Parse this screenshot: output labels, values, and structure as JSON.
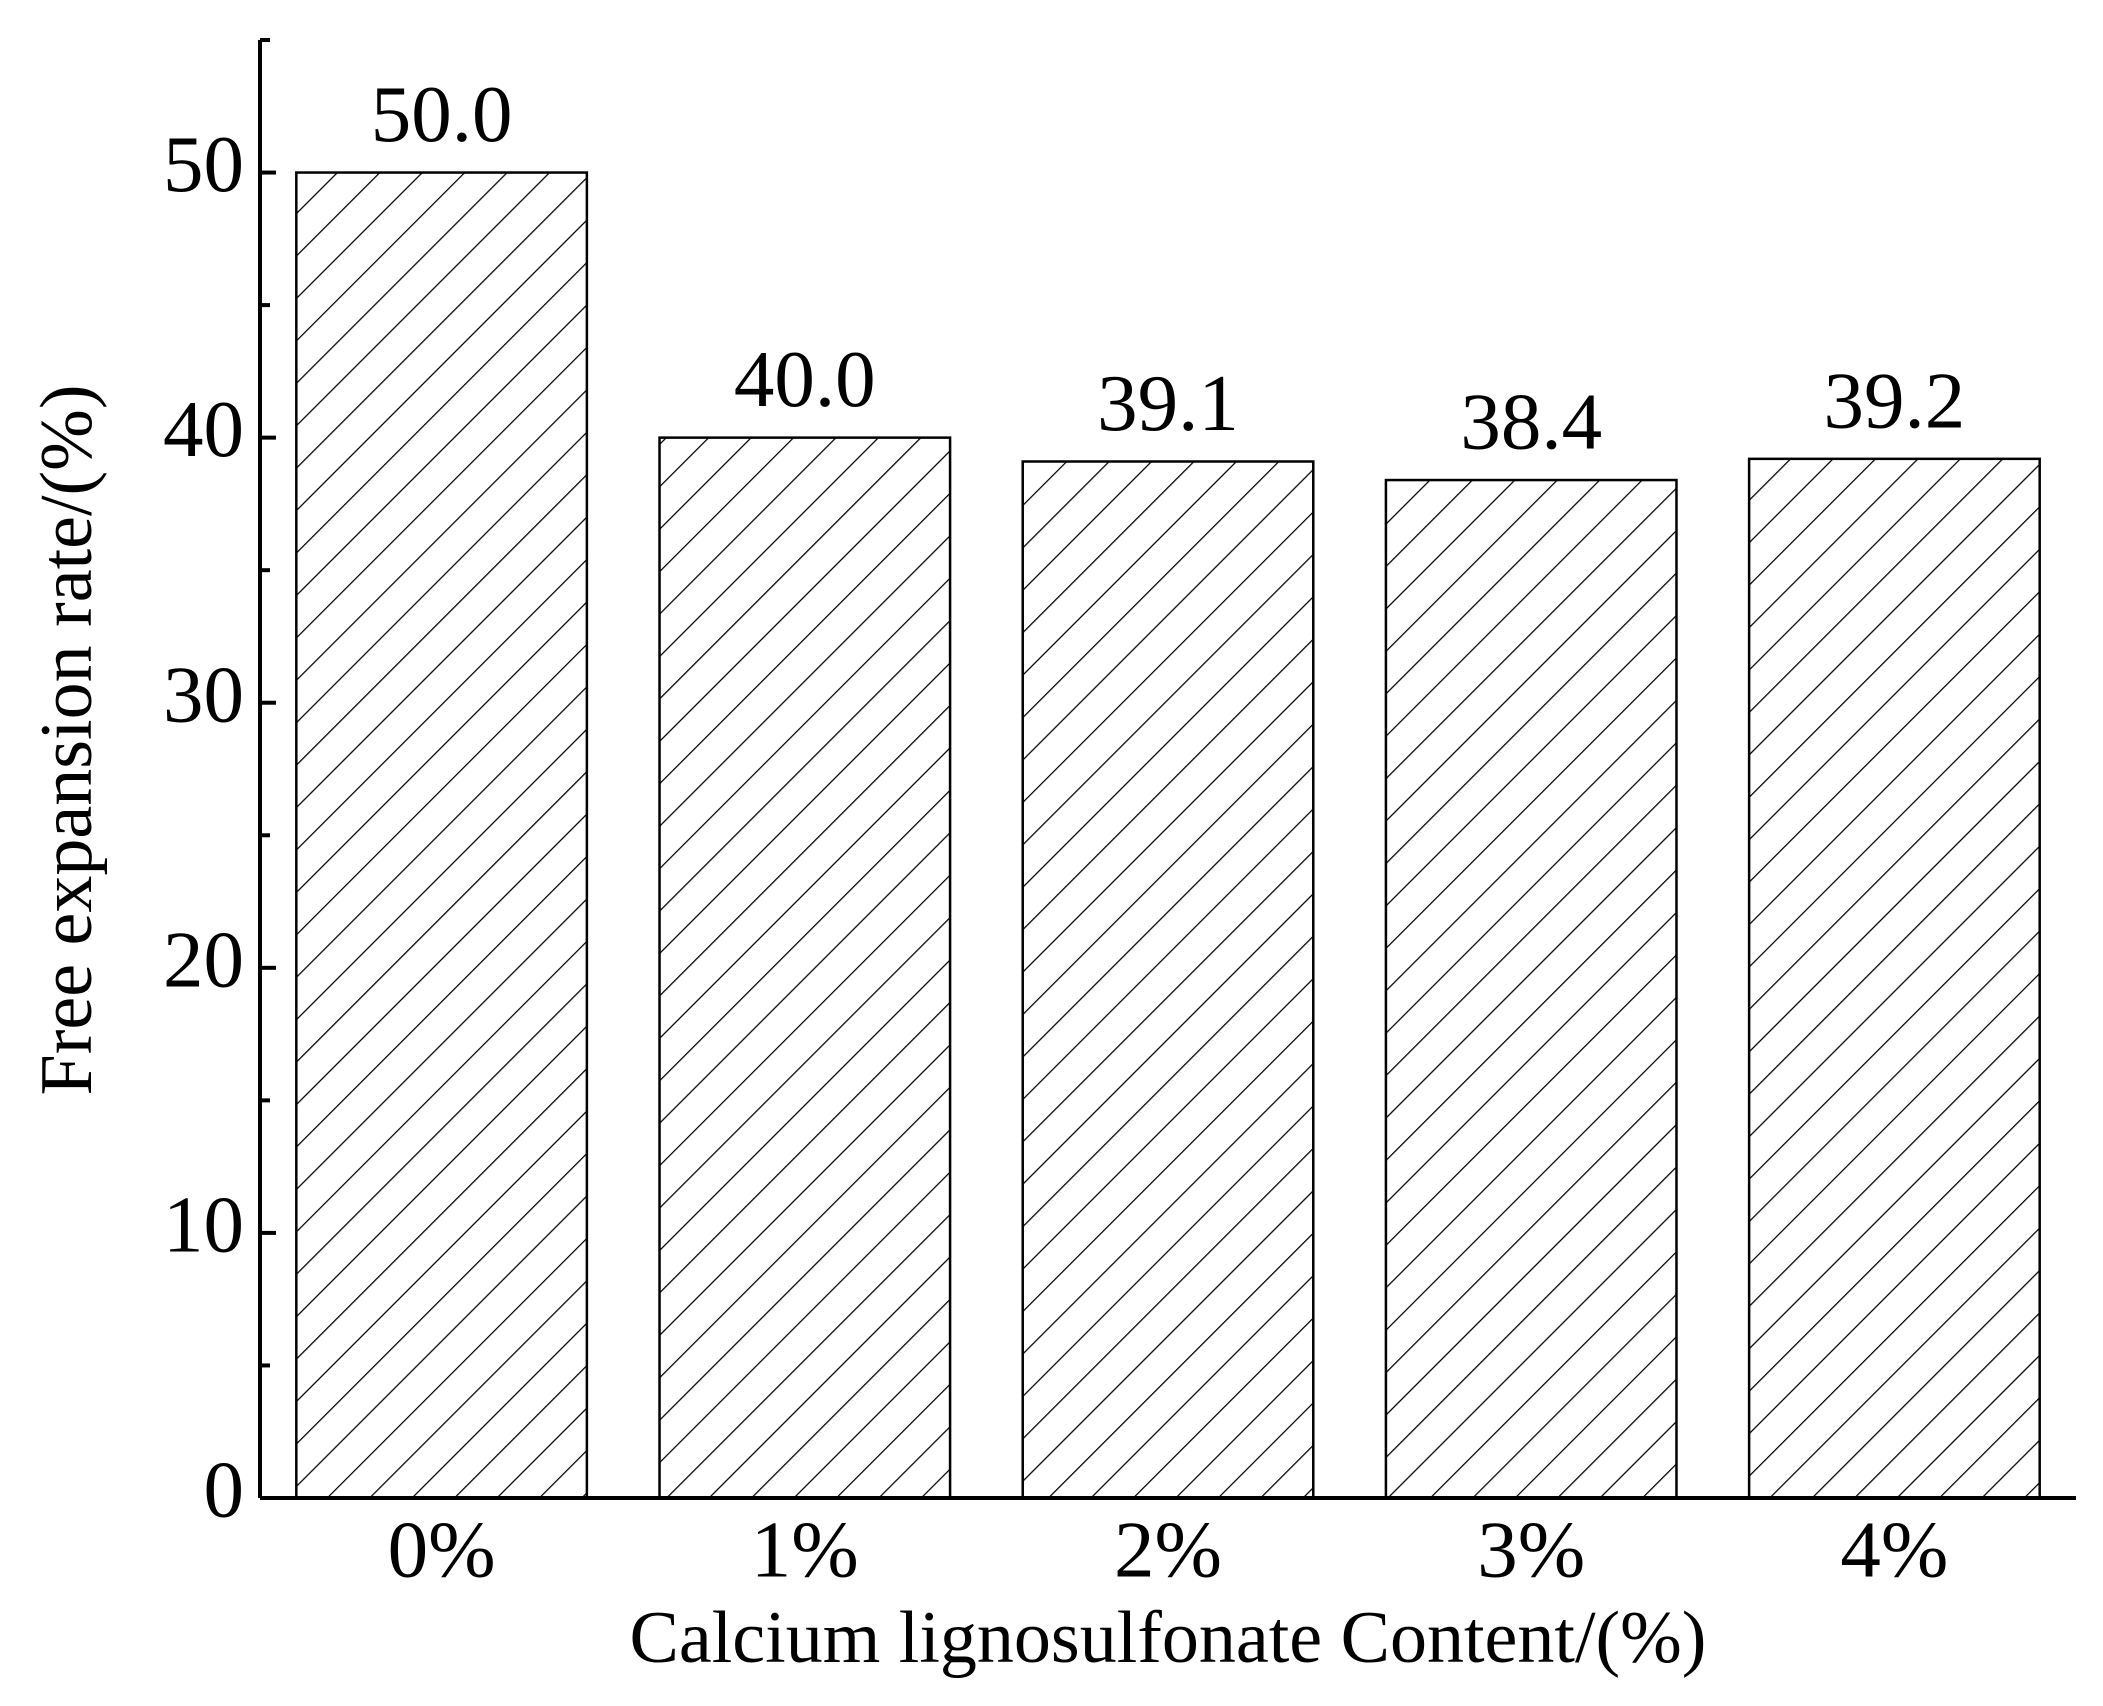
{
  "chart_data": {
    "type": "bar",
    "x_label": "Calcium lignosulfonate Content/(%)",
    "y_label": "Free expansion rate/(%)",
    "categories": [
      "0%",
      "1%",
      "2%",
      "3%",
      "4%"
    ],
    "values": [
      50.0,
      40.0,
      39.1,
      38.4,
      39.2
    ],
    "value_labels": [
      "50.0",
      "40.0",
      "39.1",
      "38.4",
      "39.2"
    ],
    "pattern": "hatched",
    "color": "#000000",
    "ylim": [
      0,
      55
    ],
    "yticks": [
      0,
      10,
      20,
      30,
      40,
      50
    ],
    "y_minor_ticks": [
      5,
      15,
      25,
      35,
      45,
      55
    ],
    "grid": false
  }
}
